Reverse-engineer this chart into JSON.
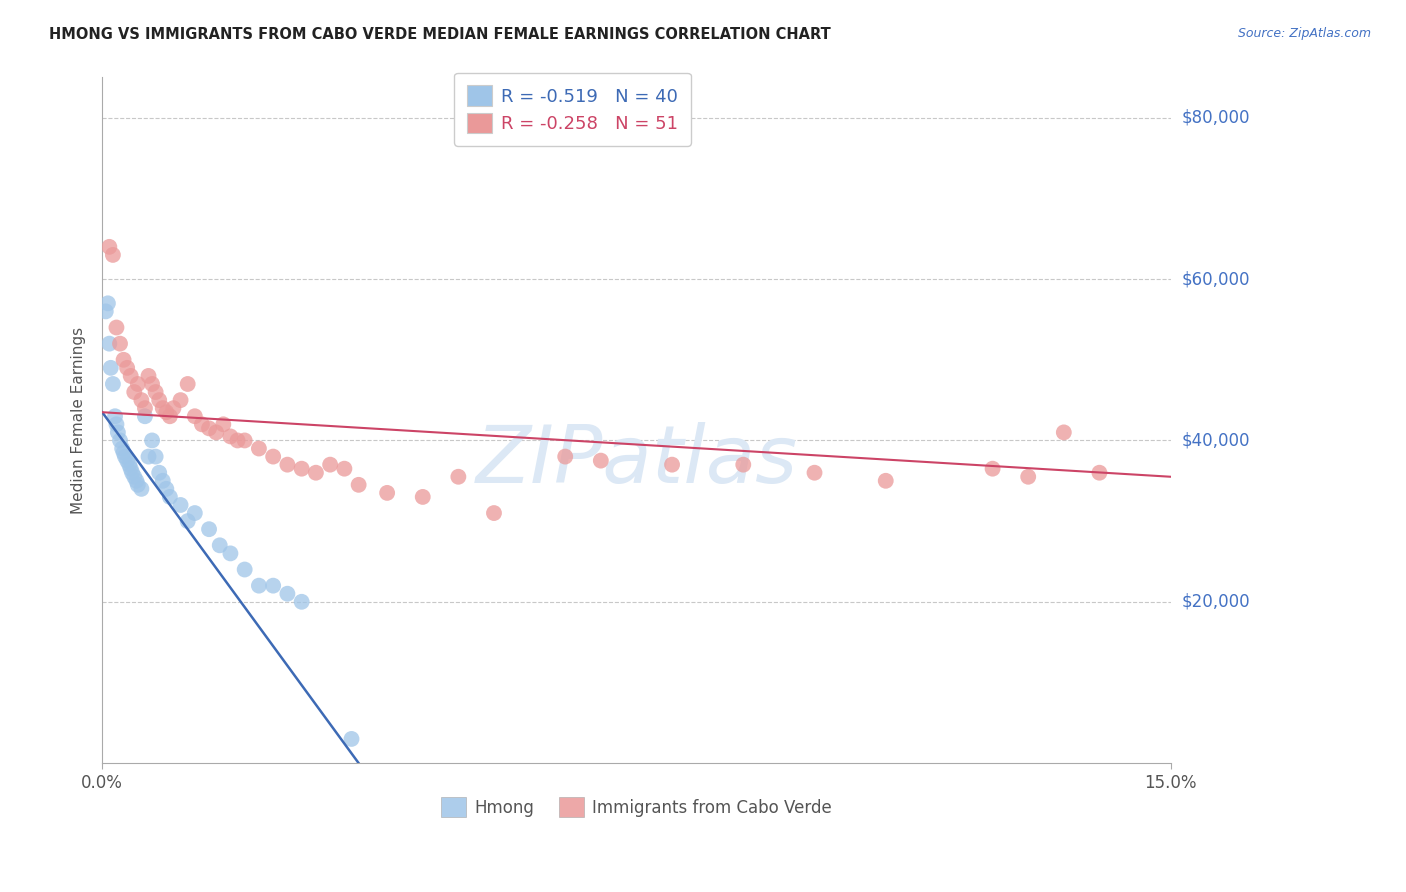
{
  "title": "HMONG VS IMMIGRANTS FROM CABO VERDE MEDIAN FEMALE EARNINGS CORRELATION CHART",
  "source": "Source: ZipAtlas.com",
  "ylabel": "Median Female Earnings",
  "xmin": 0.0,
  "xmax": 15.0,
  "ymin": 0,
  "ymax": 85000,
  "yticks": [
    0,
    20000,
    40000,
    60000,
    80000
  ],
  "ytick_color": "#4472c4",
  "grid_color": "#c8c8c8",
  "background_color": "#ffffff",
  "watermark_text": "ZIPatlas",
  "watermark_color": "#dce8f5",
  "legend_r1": "-0.519",
  "legend_n1": "40",
  "legend_r2": "-0.258",
  "legend_n2": "51",
  "hmong_color": "#9fc5e8",
  "cabo_verde_color": "#ea9999",
  "hmong_line_color": "#3d6ab5",
  "cabo_verde_line_color": "#cc4466",
  "hmong_line_x0": 0.0,
  "hmong_line_y0": 43500,
  "hmong_line_x1": 3.6,
  "hmong_line_y1": 0,
  "cabo_line_x0": 0.0,
  "cabo_line_y0": 43500,
  "cabo_line_x1": 15.0,
  "cabo_line_y1": 35500,
  "hmong_points_x": [
    0.05,
    0.08,
    0.1,
    0.12,
    0.15,
    0.18,
    0.2,
    0.22,
    0.25,
    0.28,
    0.3,
    0.32,
    0.35,
    0.38,
    0.4,
    0.42,
    0.45,
    0.48,
    0.5,
    0.55,
    0.6,
    0.65,
    0.7,
    0.75,
    0.8,
    0.85,
    0.9,
    0.95,
    1.1,
    1.2,
    1.3,
    1.5,
    1.65,
    1.8,
    2.0,
    2.2,
    2.4,
    2.6,
    2.8,
    3.5
  ],
  "hmong_points_y": [
    56000,
    57000,
    52000,
    49000,
    47000,
    43000,
    42000,
    41000,
    40000,
    39000,
    38500,
    38000,
    37500,
    37000,
    36500,
    36000,
    35500,
    35000,
    34500,
    34000,
    43000,
    38000,
    40000,
    38000,
    36000,
    35000,
    34000,
    33000,
    32000,
    30000,
    31000,
    29000,
    27000,
    26000,
    24000,
    22000,
    22000,
    21000,
    20000,
    3000
  ],
  "cabo_verde_points_x": [
    0.1,
    0.15,
    0.2,
    0.25,
    0.3,
    0.35,
    0.4,
    0.45,
    0.5,
    0.55,
    0.6,
    0.65,
    0.7,
    0.75,
    0.8,
    0.85,
    0.9,
    0.95,
    1.0,
    1.1,
    1.2,
    1.3,
    1.4,
    1.5,
    1.6,
    1.7,
    1.8,
    1.9,
    2.0,
    2.2,
    2.4,
    2.6,
    2.8,
    3.0,
    3.2,
    3.4,
    3.6,
    4.0,
    4.5,
    5.0,
    5.5,
    6.5,
    7.0,
    8.0,
    9.0,
    10.0,
    11.0,
    12.5,
    13.0,
    13.5,
    14.0
  ],
  "cabo_verde_points_y": [
    64000,
    63000,
    54000,
    52000,
    50000,
    49000,
    48000,
    46000,
    47000,
    45000,
    44000,
    48000,
    47000,
    46000,
    45000,
    44000,
    43500,
    43000,
    44000,
    45000,
    47000,
    43000,
    42000,
    41500,
    41000,
    42000,
    40500,
    40000,
    40000,
    39000,
    38000,
    37000,
    36500,
    36000,
    37000,
    36500,
    34500,
    33500,
    33000,
    35500,
    31000,
    38000,
    37500,
    37000,
    37000,
    36000,
    35000,
    36500,
    35500,
    41000,
    36000
  ]
}
